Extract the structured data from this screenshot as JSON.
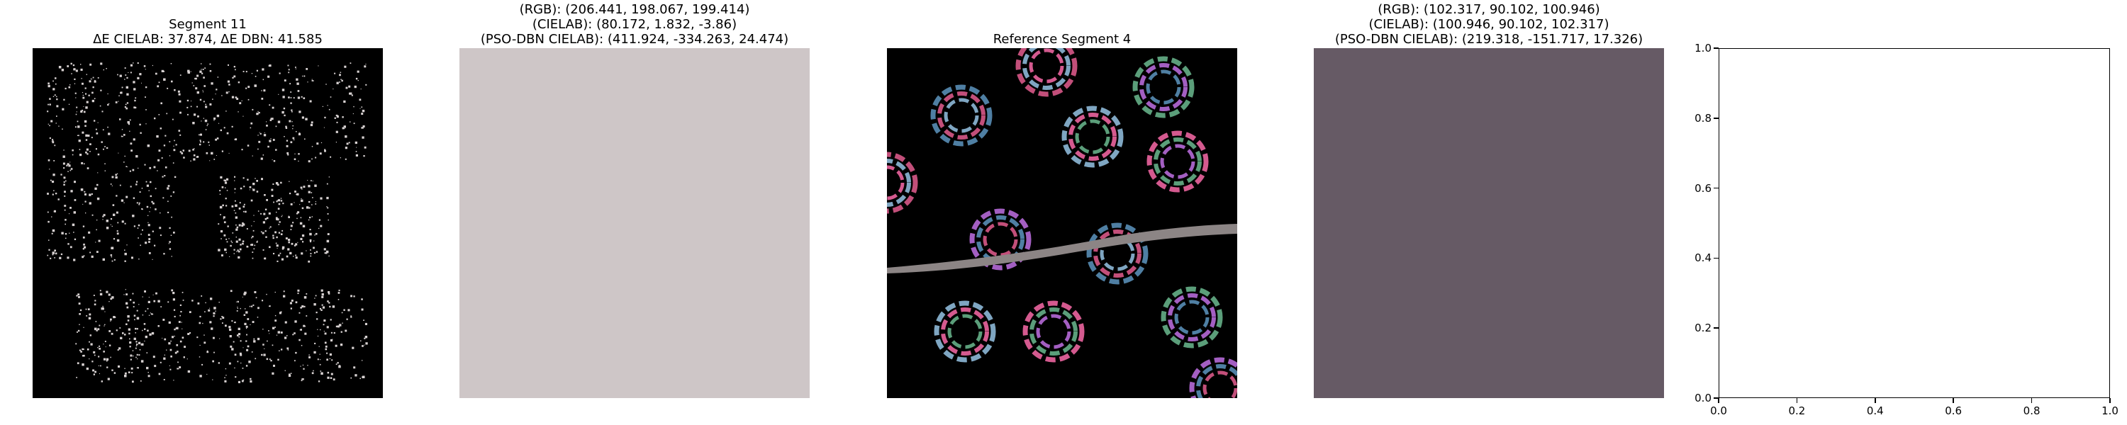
{
  "figure": {
    "panels": [
      {
        "title_lines": [
          "Segment 11",
          "ΔE CIELAB: 37.874, ΔE DBN: 41.585"
        ],
        "kind": "image-segment"
      },
      {
        "title_lines": [
          "(RGB): (206.441, 198.067, 199.414)",
          "(CIELAB): (80.172, 1.832, -3.86)",
          "(PSO-DBN CIELAB): (411.924, -334.263, 24.474)"
        ],
        "kind": "color-swatch",
        "swatch_color": "#cec6c7"
      },
      {
        "title_lines": [
          "Reference Segment 4"
        ],
        "kind": "image-segment"
      },
      {
        "title_lines": [
          "(RGB): (102.317, 90.102, 100.946)",
          "(CIELAB): (100.946, 90.102, 102.317)",
          "(PSO-DBN CIELAB): (219.318, -151.717, 17.326)"
        ],
        "kind": "color-swatch",
        "swatch_color": "#665a65"
      },
      {
        "title_lines": [],
        "kind": "empty-axes"
      }
    ]
  },
  "chart_data": {
    "type": "scatter",
    "title": "",
    "xlabel": "",
    "ylabel": "",
    "xlim": [
      0.0,
      1.0
    ],
    "ylim": [
      0.0,
      1.0
    ],
    "x_ticks": [
      "0.0",
      "0.2",
      "0.4",
      "0.6",
      "0.8",
      "1.0"
    ],
    "y_ticks": [
      "0.0",
      "0.2",
      "0.4",
      "0.6",
      "0.8",
      "1.0"
    ],
    "series": []
  }
}
